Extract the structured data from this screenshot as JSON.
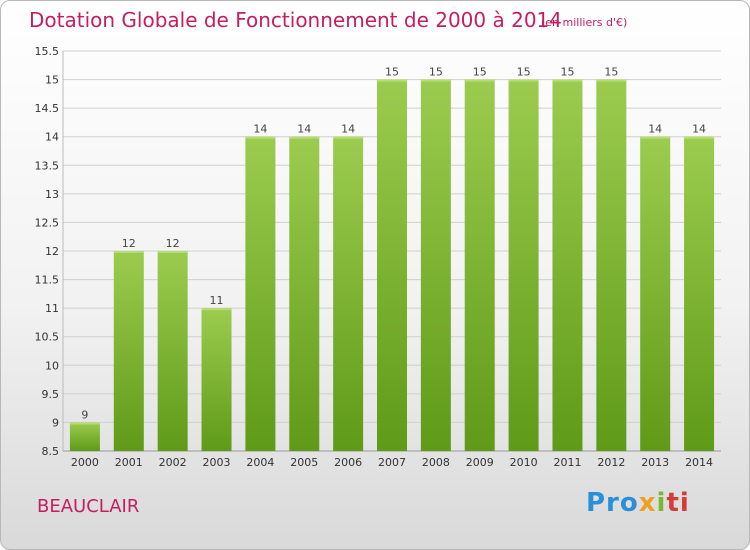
{
  "chart_data": {
    "type": "bar",
    "title": "Dotation Globale de Fonctionnement de 2000 à 2014",
    "subtitle": "(en milliers d'€)",
    "categories": [
      "2000",
      "2001",
      "2002",
      "2003",
      "2004",
      "2005",
      "2006",
      "2007",
      "2008",
      "2009",
      "2010",
      "2011",
      "2012",
      "2013",
      "2014"
    ],
    "values": [
      9,
      12,
      12,
      11,
      14,
      14,
      14,
      15,
      15,
      15,
      15,
      15,
      15,
      14,
      14
    ],
    "ylim": [
      8.5,
      15.5
    ],
    "yticks": [
      8.5,
      9,
      9.5,
      10,
      10.5,
      11,
      11.5,
      12,
      12.5,
      13,
      13.5,
      14,
      14.5,
      15,
      15.5
    ],
    "xlabel": "",
    "ylabel": "",
    "grid": true,
    "bar_color": "#7cb82f"
  },
  "footer": {
    "city": "BEAUCLAIR",
    "logo": [
      "Pro",
      "x",
      "i",
      "ti"
    ]
  }
}
